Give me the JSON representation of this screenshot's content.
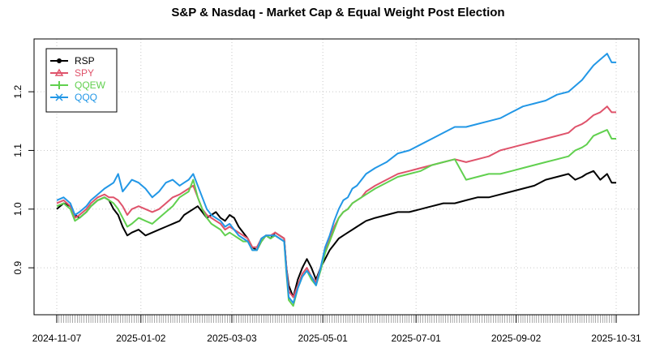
{
  "chart_data": {
    "type": "line",
    "title": "S&P & Nasdaq - Market Cap & Equal Weight Post Election",
    "xlabel": "",
    "ylabel": "",
    "ylim": [
      0.82,
      1.29
    ],
    "yticks": [
      0.9,
      1.0,
      1.1,
      1.2
    ],
    "ytick_labels": [
      "0.9",
      "1.0",
      "1.1",
      "1.2"
    ],
    "x_range": [
      0,
      246
    ],
    "xticks": [
      0,
      37,
      77,
      117,
      158,
      202,
      246
    ],
    "xtick_labels": [
      "2024-11-07",
      "2025-01-02",
      "2025-03-03",
      "2025-05-01",
      "2025-07-01",
      "2025-09-02",
      "2025-10-31"
    ],
    "grid": true,
    "legend": "top-left",
    "series": [
      {
        "name": "RSP",
        "color": "#000000",
        "x": [
          0,
          3,
          6,
          8,
          10,
          13,
          15,
          18,
          21,
          23,
          25,
          27,
          29,
          31,
          33,
          36,
          39,
          42,
          45,
          48,
          51,
          54,
          56,
          58,
          60,
          62,
          64,
          66,
          68,
          70,
          72,
          74,
          76,
          78,
          80,
          82,
          84,
          86,
          88,
          90,
          92,
          94,
          96,
          98,
          100,
          101,
          102,
          104,
          106,
          108,
          110,
          112,
          114,
          116,
          118,
          120,
          122,
          124,
          126,
          128,
          130,
          132,
          134,
          136,
          140,
          145,
          150,
          155,
          160,
          165,
          170,
          175,
          180,
          185,
          190,
          195,
          200,
          205,
          210,
          215,
          220,
          225,
          228,
          231,
          233,
          236,
          239,
          242,
          244,
          246
        ],
        "values": [
          1.0,
          1.01,
          1.005,
          0.99,
          0.985,
          0.995,
          1.005,
          1.015,
          1.02,
          1.015,
          1.0,
          0.99,
          0.97,
          0.955,
          0.96,
          0.965,
          0.955,
          0.96,
          0.965,
          0.97,
          0.975,
          0.98,
          0.99,
          0.995,
          1.0,
          1.005,
          0.995,
          0.985,
          0.99,
          0.995,
          0.985,
          0.98,
          0.99,
          0.985,
          0.97,
          0.96,
          0.95,
          0.935,
          0.93,
          0.945,
          0.955,
          0.95,
          0.96,
          0.955,
          0.95,
          0.9,
          0.87,
          0.85,
          0.88,
          0.9,
          0.915,
          0.9,
          0.88,
          0.9,
          0.915,
          0.93,
          0.94,
          0.95,
          0.955,
          0.96,
          0.965,
          0.97,
          0.975,
          0.98,
          0.985,
          0.99,
          0.995,
          0.995,
          1.0,
          1.005,
          1.01,
          1.01,
          1.015,
          1.02,
          1.02,
          1.025,
          1.03,
          1.035,
          1.04,
          1.05,
          1.055,
          1.06,
          1.05,
          1.055,
          1.06,
          1.065,
          1.05,
          1.06,
          1.045,
          1.045
        ]
      },
      {
        "name": "SPY",
        "color": "#DF536B",
        "x": [
          0,
          3,
          6,
          8,
          10,
          13,
          15,
          18,
          21,
          23,
          25,
          27,
          29,
          31,
          33,
          36,
          39,
          42,
          45,
          48,
          51,
          54,
          56,
          58,
          60,
          62,
          64,
          66,
          68,
          70,
          72,
          74,
          76,
          78,
          80,
          82,
          84,
          86,
          88,
          90,
          92,
          94,
          96,
          98,
          100,
          101,
          102,
          104,
          106,
          108,
          110,
          112,
          114,
          116,
          118,
          120,
          122,
          124,
          126,
          128,
          130,
          132,
          134,
          136,
          140,
          145,
          150,
          155,
          160,
          165,
          170,
          175,
          180,
          185,
          190,
          195,
          200,
          205,
          210,
          215,
          220,
          225,
          228,
          231,
          233,
          236,
          239,
          242,
          244,
          246
        ],
        "values": [
          1.01,
          1.015,
          1.005,
          0.985,
          0.99,
          1.0,
          1.01,
          1.02,
          1.025,
          1.02,
          1.02,
          1.015,
          1.005,
          0.99,
          1.0,
          1.005,
          1.0,
          0.995,
          1.0,
          1.01,
          1.02,
          1.025,
          1.03,
          1.035,
          1.04,
          1.02,
          1.0,
          0.99,
          0.985,
          0.98,
          0.975,
          0.965,
          0.97,
          0.965,
          0.96,
          0.955,
          0.95,
          0.935,
          0.935,
          0.95,
          0.955,
          0.955,
          0.96,
          0.955,
          0.95,
          0.9,
          0.86,
          0.85,
          0.87,
          0.89,
          0.9,
          0.885,
          0.875,
          0.9,
          0.93,
          0.95,
          0.97,
          0.985,
          0.995,
          1.0,
          1.01,
          1.015,
          1.02,
          1.03,
          1.04,
          1.05,
          1.06,
          1.065,
          1.07,
          1.075,
          1.08,
          1.085,
          1.08,
          1.085,
          1.09,
          1.1,
          1.105,
          1.11,
          1.115,
          1.12,
          1.125,
          1.13,
          1.14,
          1.145,
          1.15,
          1.16,
          1.165,
          1.175,
          1.165,
          1.165
        ]
      },
      {
        "name": "QQEW",
        "color": "#61D04F",
        "x": [
          0,
          3,
          6,
          8,
          10,
          13,
          15,
          18,
          21,
          23,
          25,
          27,
          29,
          31,
          33,
          36,
          39,
          42,
          45,
          48,
          51,
          54,
          56,
          58,
          60,
          62,
          64,
          66,
          68,
          70,
          72,
          74,
          76,
          78,
          80,
          82,
          84,
          86,
          88,
          90,
          92,
          94,
          96,
          98,
          100,
          101,
          102,
          104,
          106,
          108,
          110,
          112,
          114,
          116,
          118,
          120,
          122,
          124,
          126,
          128,
          130,
          132,
          134,
          136,
          140,
          145,
          150,
          155,
          160,
          165,
          170,
          175,
          180,
          185,
          190,
          195,
          200,
          205,
          210,
          215,
          220,
          225,
          228,
          231,
          233,
          236,
          239,
          242,
          244,
          246
        ],
        "values": [
          1.005,
          1.01,
          1.0,
          0.98,
          0.985,
          0.995,
          1.005,
          1.015,
          1.02,
          1.015,
          1.01,
          1.0,
          0.985,
          0.97,
          0.975,
          0.985,
          0.98,
          0.975,
          0.985,
          0.995,
          1.005,
          1.02,
          1.025,
          1.03,
          1.05,
          1.02,
          1.0,
          0.985,
          0.975,
          0.97,
          0.965,
          0.955,
          0.96,
          0.955,
          0.95,
          0.945,
          0.945,
          0.93,
          0.93,
          0.945,
          0.955,
          0.95,
          0.955,
          0.95,
          0.945,
          0.89,
          0.845,
          0.835,
          0.865,
          0.885,
          0.895,
          0.88,
          0.87,
          0.895,
          0.925,
          0.945,
          0.965,
          0.985,
          0.995,
          1.0,
          1.01,
          1.015,
          1.02,
          1.025,
          1.035,
          1.045,
          1.055,
          1.06,
          1.065,
          1.075,
          1.08,
          1.085,
          1.05,
          1.055,
          1.06,
          1.06,
          1.065,
          1.07,
          1.075,
          1.08,
          1.085,
          1.09,
          1.1,
          1.105,
          1.11,
          1.125,
          1.13,
          1.135,
          1.12,
          1.12
        ]
      },
      {
        "name": "QQQ",
        "color": "#2297E6",
        "x": [
          0,
          3,
          6,
          8,
          10,
          13,
          15,
          18,
          21,
          23,
          25,
          27,
          29,
          31,
          33,
          36,
          39,
          42,
          45,
          48,
          51,
          54,
          56,
          58,
          60,
          62,
          64,
          66,
          68,
          70,
          72,
          74,
          76,
          78,
          80,
          82,
          84,
          86,
          88,
          90,
          92,
          94,
          96,
          98,
          100,
          101,
          102,
          104,
          106,
          108,
          110,
          112,
          114,
          116,
          118,
          120,
          122,
          124,
          126,
          128,
          130,
          132,
          134,
          136,
          140,
          145,
          150,
          155,
          160,
          165,
          170,
          175,
          180,
          185,
          190,
          195,
          200,
          205,
          210,
          215,
          220,
          225,
          228,
          231,
          233,
          236,
          239,
          242,
          244,
          246
        ],
        "values": [
          1.015,
          1.02,
          1.01,
          0.99,
          0.995,
          1.005,
          1.015,
          1.025,
          1.035,
          1.04,
          1.045,
          1.06,
          1.03,
          1.04,
          1.05,
          1.045,
          1.035,
          1.02,
          1.03,
          1.045,
          1.05,
          1.04,
          1.045,
          1.05,
          1.06,
          1.04,
          1.02,
          1.0,
          0.99,
          0.985,
          0.98,
          0.97,
          0.975,
          0.965,
          0.955,
          0.95,
          0.945,
          0.93,
          0.93,
          0.95,
          0.955,
          0.955,
          0.955,
          0.95,
          0.945,
          0.895,
          0.85,
          0.84,
          0.865,
          0.885,
          0.895,
          0.885,
          0.87,
          0.9,
          0.935,
          0.955,
          0.98,
          1.0,
          1.015,
          1.02,
          1.035,
          1.04,
          1.05,
          1.06,
          1.07,
          1.08,
          1.095,
          1.1,
          1.11,
          1.12,
          1.13,
          1.14,
          1.14,
          1.145,
          1.15,
          1.155,
          1.165,
          1.175,
          1.18,
          1.185,
          1.195,
          1.2,
          1.21,
          1.22,
          1.23,
          1.245,
          1.255,
          1.265,
          1.25,
          1.25
        ]
      }
    ]
  }
}
